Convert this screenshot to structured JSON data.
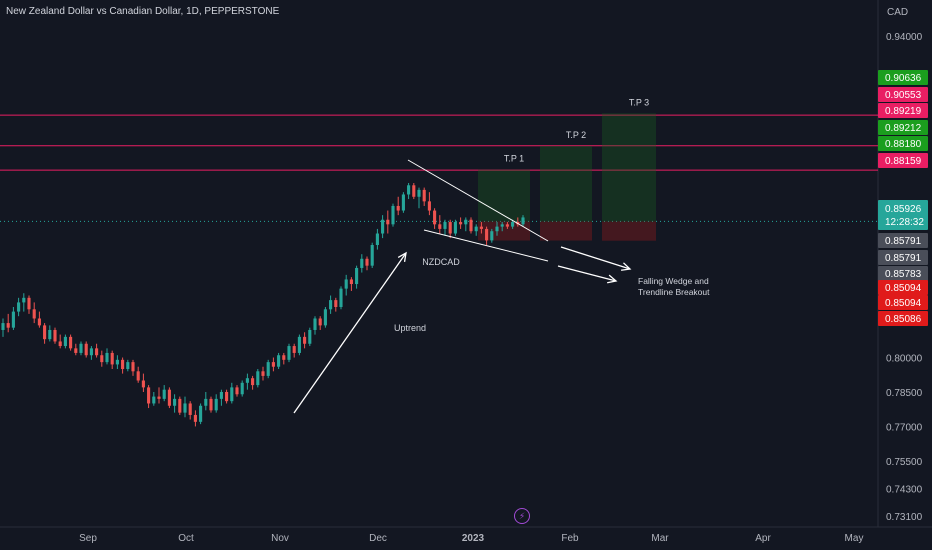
{
  "header": {
    "title": "New Zealand Dollar vs Canadian Dollar, 1D, PEPPERSTONE",
    "currency": "CAD"
  },
  "colors": {
    "background": "#131722",
    "up_candle": "#26a69a",
    "down_candle": "#ef5350",
    "target_line": "#e91e63",
    "annotation": "#ffffff",
    "profit_zone": "#1b5e20",
    "loss_zone": "#b71c1c",
    "axis_text": "#b2b5be"
  },
  "chart_data": {
    "type": "candlestick",
    "symbol": "NZDCAD",
    "timeframe": "1D",
    "broker": "PEPPERSTONE",
    "y_axis": {
      "unit": "CAD",
      "ticks": [
        0.94,
        0.8,
        0.785,
        0.77,
        0.755,
        0.743,
        0.731
      ],
      "range": [
        0.728,
        0.95
      ]
    },
    "x_axis": {
      "ticks": [
        "Sep",
        "Oct",
        "Nov",
        "Dec",
        "2023",
        "Feb",
        "Mar",
        "Apr",
        "May"
      ],
      "bold_tick": "2023"
    },
    "price_labels": [
      {
        "value": "0.90636",
        "type": "tp"
      },
      {
        "value": "0.90553",
        "type": "level"
      },
      {
        "value": "0.89219",
        "type": "level"
      },
      {
        "value": "0.89212",
        "type": "tp"
      },
      {
        "value": "0.88180",
        "type": "tp"
      },
      {
        "value": "0.88159",
        "type": "level"
      },
      {
        "value": "0.85926",
        "type": "current",
        "countdown": "12:28:32"
      },
      {
        "value": "0.85791",
        "type": "neutral"
      },
      {
        "value": "0.85791",
        "type": "neutral"
      },
      {
        "value": "0.85783",
        "type": "neutral"
      },
      {
        "value": "0.85094",
        "type": "sl"
      },
      {
        "value": "0.85094",
        "type": "sl"
      },
      {
        "value": "0.85086",
        "type": "sl"
      }
    ],
    "horizontal_levels": [
      0.90553,
      0.89219,
      0.88159
    ],
    "current_price": 0.85926,
    "targets": [
      {
        "label": "T.P 1",
        "entry": 0.85926,
        "target": 0.8818,
        "stop": 0.85094
      },
      {
        "label": "T.P 2",
        "entry": 0.85926,
        "target": 0.89212,
        "stop": 0.85094
      },
      {
        "label": "T.P 3",
        "entry": 0.85926,
        "target": 0.90636,
        "stop": 0.85086
      }
    ],
    "annotations": [
      "Uptrend",
      "NZDCAD",
      "Falling Wedge and",
      "Trendline Breakout"
    ],
    "candles": [
      {
        "o": 0.812,
        "h": 0.817,
        "l": 0.809,
        "c": 0.815
      },
      {
        "o": 0.815,
        "h": 0.819,
        "l": 0.811,
        "c": 0.813
      },
      {
        "o": 0.813,
        "h": 0.822,
        "l": 0.812,
        "c": 0.82
      },
      {
        "o": 0.82,
        "h": 0.826,
        "l": 0.818,
        "c": 0.824
      },
      {
        "o": 0.824,
        "h": 0.828,
        "l": 0.82,
        "c": 0.826
      },
      {
        "o": 0.826,
        "h": 0.827,
        "l": 0.819,
        "c": 0.821
      },
      {
        "o": 0.821,
        "h": 0.824,
        "l": 0.815,
        "c": 0.817
      },
      {
        "o": 0.817,
        "h": 0.82,
        "l": 0.813,
        "c": 0.814
      },
      {
        "o": 0.814,
        "h": 0.815,
        "l": 0.806,
        "c": 0.808
      },
      {
        "o": 0.808,
        "h": 0.814,
        "l": 0.807,
        "c": 0.812
      },
      {
        "o": 0.812,
        "h": 0.813,
        "l": 0.806,
        "c": 0.807
      },
      {
        "o": 0.807,
        "h": 0.81,
        "l": 0.804,
        "c": 0.805
      },
      {
        "o": 0.805,
        "h": 0.81,
        "l": 0.804,
        "c": 0.809
      },
      {
        "o": 0.809,
        "h": 0.81,
        "l": 0.803,
        "c": 0.804
      },
      {
        "o": 0.804,
        "h": 0.806,
        "l": 0.801,
        "c": 0.802
      },
      {
        "o": 0.802,
        "h": 0.807,
        "l": 0.801,
        "c": 0.806
      },
      {
        "o": 0.806,
        "h": 0.807,
        "l": 0.8,
        "c": 0.801
      },
      {
        "o": 0.801,
        "h": 0.805,
        "l": 0.799,
        "c": 0.804
      },
      {
        "o": 0.804,
        "h": 0.806,
        "l": 0.8,
        "c": 0.801
      },
      {
        "o": 0.801,
        "h": 0.803,
        "l": 0.796,
        "c": 0.798
      },
      {
        "o": 0.798,
        "h": 0.804,
        "l": 0.797,
        "c": 0.802
      },
      {
        "o": 0.802,
        "h": 0.803,
        "l": 0.795,
        "c": 0.797
      },
      {
        "o": 0.797,
        "h": 0.801,
        "l": 0.795,
        "c": 0.799
      },
      {
        "o": 0.799,
        "h": 0.8,
        "l": 0.793,
        "c": 0.795
      },
      {
        "o": 0.795,
        "h": 0.799,
        "l": 0.794,
        "c": 0.798
      },
      {
        "o": 0.798,
        "h": 0.799,
        "l": 0.792,
        "c": 0.794
      },
      {
        "o": 0.794,
        "h": 0.796,
        "l": 0.789,
        "c": 0.79
      },
      {
        "o": 0.79,
        "h": 0.793,
        "l": 0.785,
        "c": 0.787
      },
      {
        "o": 0.787,
        "h": 0.788,
        "l": 0.778,
        "c": 0.78
      },
      {
        "o": 0.78,
        "h": 0.785,
        "l": 0.779,
        "c": 0.783
      },
      {
        "o": 0.783,
        "h": 0.787,
        "l": 0.78,
        "c": 0.782
      },
      {
        "o": 0.782,
        "h": 0.788,
        "l": 0.781,
        "c": 0.786
      },
      {
        "o": 0.786,
        "h": 0.787,
        "l": 0.778,
        "c": 0.779
      },
      {
        "o": 0.779,
        "h": 0.784,
        "l": 0.776,
        "c": 0.782
      },
      {
        "o": 0.782,
        "h": 0.783,
        "l": 0.775,
        "c": 0.776
      },
      {
        "o": 0.776,
        "h": 0.783,
        "l": 0.774,
        "c": 0.78
      },
      {
        "o": 0.78,
        "h": 0.781,
        "l": 0.773,
        "c": 0.775
      },
      {
        "o": 0.775,
        "h": 0.777,
        "l": 0.77,
        "c": 0.772
      },
      {
        "o": 0.772,
        "h": 0.78,
        "l": 0.771,
        "c": 0.779
      },
      {
        "o": 0.779,
        "h": 0.785,
        "l": 0.777,
        "c": 0.782
      },
      {
        "o": 0.782,
        "h": 0.783,
        "l": 0.776,
        "c": 0.777
      },
      {
        "o": 0.777,
        "h": 0.784,
        "l": 0.776,
        "c": 0.782
      },
      {
        "o": 0.782,
        "h": 0.786,
        "l": 0.779,
        "c": 0.785
      },
      {
        "o": 0.785,
        "h": 0.786,
        "l": 0.78,
        "c": 0.781
      },
      {
        "o": 0.781,
        "h": 0.789,
        "l": 0.78,
        "c": 0.787
      },
      {
        "o": 0.787,
        "h": 0.788,
        "l": 0.783,
        "c": 0.784
      },
      {
        "o": 0.784,
        "h": 0.79,
        "l": 0.783,
        "c": 0.789
      },
      {
        "o": 0.789,
        "h": 0.793,
        "l": 0.786,
        "c": 0.791
      },
      {
        "o": 0.791,
        "h": 0.792,
        "l": 0.786,
        "c": 0.788
      },
      {
        "o": 0.788,
        "h": 0.795,
        "l": 0.787,
        "c": 0.794
      },
      {
        "o": 0.794,
        "h": 0.796,
        "l": 0.79,
        "c": 0.792
      },
      {
        "o": 0.792,
        "h": 0.799,
        "l": 0.791,
        "c": 0.798
      },
      {
        "o": 0.798,
        "h": 0.8,
        "l": 0.794,
        "c": 0.796
      },
      {
        "o": 0.796,
        "h": 0.802,
        "l": 0.795,
        "c": 0.801
      },
      {
        "o": 0.801,
        "h": 0.802,
        "l": 0.797,
        "c": 0.799
      },
      {
        "o": 0.799,
        "h": 0.806,
        "l": 0.798,
        "c": 0.805
      },
      {
        "o": 0.805,
        "h": 0.806,
        "l": 0.8,
        "c": 0.802
      },
      {
        "o": 0.802,
        "h": 0.81,
        "l": 0.801,
        "c": 0.809
      },
      {
        "o": 0.809,
        "h": 0.811,
        "l": 0.804,
        "c": 0.806
      },
      {
        "o": 0.806,
        "h": 0.813,
        "l": 0.805,
        "c": 0.812
      },
      {
        "o": 0.812,
        "h": 0.818,
        "l": 0.81,
        "c": 0.817
      },
      {
        "o": 0.817,
        "h": 0.818,
        "l": 0.812,
        "c": 0.814
      },
      {
        "o": 0.814,
        "h": 0.822,
        "l": 0.813,
        "c": 0.821
      },
      {
        "o": 0.821,
        "h": 0.827,
        "l": 0.819,
        "c": 0.825
      },
      {
        "o": 0.825,
        "h": 0.826,
        "l": 0.82,
        "c": 0.822
      },
      {
        "o": 0.822,
        "h": 0.831,
        "l": 0.821,
        "c": 0.83
      },
      {
        "o": 0.83,
        "h": 0.836,
        "l": 0.827,
        "c": 0.834
      },
      {
        "o": 0.834,
        "h": 0.835,
        "l": 0.829,
        "c": 0.832
      },
      {
        "o": 0.832,
        "h": 0.84,
        "l": 0.83,
        "c": 0.839
      },
      {
        "o": 0.839,
        "h": 0.845,
        "l": 0.837,
        "c": 0.843
      },
      {
        "o": 0.843,
        "h": 0.844,
        "l": 0.838,
        "c": 0.84
      },
      {
        "o": 0.84,
        "h": 0.85,
        "l": 0.839,
        "c": 0.849
      },
      {
        "o": 0.849,
        "h": 0.856,
        "l": 0.847,
        "c": 0.854
      },
      {
        "o": 0.854,
        "h": 0.862,
        "l": 0.852,
        "c": 0.86
      },
      {
        "o": 0.86,
        "h": 0.864,
        "l": 0.854,
        "c": 0.858
      },
      {
        "o": 0.858,
        "h": 0.867,
        "l": 0.857,
        "c": 0.866
      },
      {
        "o": 0.866,
        "h": 0.87,
        "l": 0.862,
        "c": 0.864
      },
      {
        "o": 0.864,
        "h": 0.872,
        "l": 0.863,
        "c": 0.871
      },
      {
        "o": 0.871,
        "h": 0.876,
        "l": 0.869,
        "c": 0.875
      },
      {
        "o": 0.875,
        "h": 0.876,
        "l": 0.869,
        "c": 0.87
      },
      {
        "o": 0.87,
        "h": 0.874,
        "l": 0.865,
        "c": 0.873
      },
      {
        "o": 0.873,
        "h": 0.874,
        "l": 0.866,
        "c": 0.868
      },
      {
        "o": 0.868,
        "h": 0.872,
        "l": 0.862,
        "c": 0.864
      },
      {
        "o": 0.864,
        "h": 0.865,
        "l": 0.856,
        "c": 0.858
      },
      {
        "o": 0.858,
        "h": 0.862,
        "l": 0.854,
        "c": 0.856
      },
      {
        "o": 0.856,
        "h": 0.86,
        "l": 0.853,
        "c": 0.859
      },
      {
        "o": 0.859,
        "h": 0.86,
        "l": 0.852,
        "c": 0.854
      },
      {
        "o": 0.854,
        "h": 0.86,
        "l": 0.853,
        "c": 0.859
      },
      {
        "o": 0.859,
        "h": 0.861,
        "l": 0.856,
        "c": 0.858
      },
      {
        "o": 0.858,
        "h": 0.861,
        "l": 0.855,
        "c": 0.86
      },
      {
        "o": 0.86,
        "h": 0.861,
        "l": 0.854,
        "c": 0.855
      },
      {
        "o": 0.855,
        "h": 0.858,
        "l": 0.853,
        "c": 0.857
      },
      {
        "o": 0.857,
        "h": 0.859,
        "l": 0.854,
        "c": 0.856
      },
      {
        "o": 0.856,
        "h": 0.857,
        "l": 0.849,
        "c": 0.851
      },
      {
        "o": 0.851,
        "h": 0.856,
        "l": 0.85,
        "c": 0.855
      },
      {
        "o": 0.855,
        "h": 0.859,
        "l": 0.853,
        "c": 0.857
      },
      {
        "o": 0.857,
        "h": 0.859,
        "l": 0.855,
        "c": 0.858
      },
      {
        "o": 0.858,
        "h": 0.859,
        "l": 0.856,
        "c": 0.857
      },
      {
        "o": 0.857,
        "h": 0.86,
        "l": 0.856,
        "c": 0.859
      },
      {
        "o": 0.859,
        "h": 0.861,
        "l": 0.857,
        "c": 0.858
      },
      {
        "o": 0.858,
        "h": 0.862,
        "l": 0.857,
        "c": 0.861
      }
    ]
  }
}
